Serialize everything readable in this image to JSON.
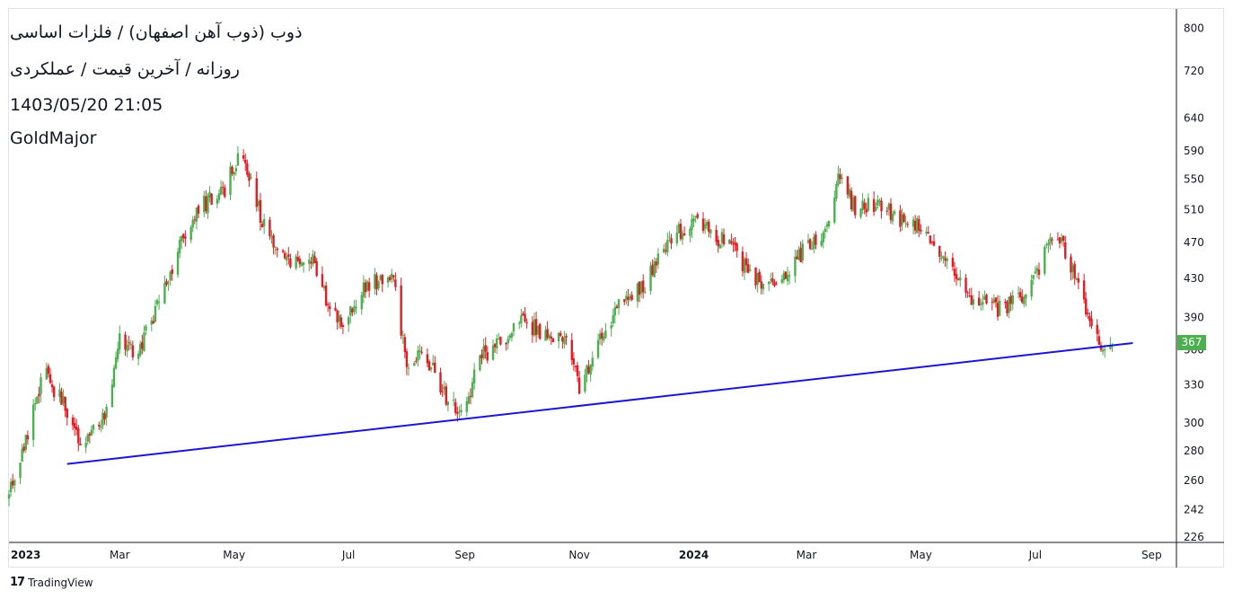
{
  "header": {
    "title": "ذوب (ذوب آهن اصفهان) / فلزات اساسی",
    "subtitle": "روزانه / آخرین قیمت / عملکردی",
    "datetime": "1403/05/20 21:05",
    "author": "GoldMajor"
  },
  "branding": {
    "label": "TradingView",
    "logo_glyph": "17"
  },
  "colors": {
    "up": "#4caf50",
    "down": "#e31b23",
    "trendline": "#1a16d4",
    "grid": "#e0e3eb"
  },
  "chart_data": {
    "type": "candlestick",
    "title": "ذوب (ذوب آهن اصفهان) / فلزات اساسی",
    "interval": "daily",
    "scale": "log",
    "ylim": [
      226,
      810
    ],
    "y_ticks": [
      800,
      720,
      640,
      590,
      550,
      510,
      470,
      430,
      390,
      360,
      330,
      300,
      280,
      260,
      242,
      226
    ],
    "x_range": [
      "2023-01-01",
      "2024-09-08"
    ],
    "x_ticks": [
      {
        "label": "2023",
        "date": "2023-01-01",
        "bold": true
      },
      {
        "label": "Mar",
        "date": "2023-03-01"
      },
      {
        "label": "May",
        "date": "2023-05-01"
      },
      {
        "label": "Jul",
        "date": "2023-07-01"
      },
      {
        "label": "Sep",
        "date": "2023-09-01"
      },
      {
        "label": "Nov",
        "date": "2023-11-01"
      },
      {
        "label": "2024",
        "date": "2024-01-01",
        "bold": true
      },
      {
        "label": "Mar",
        "date": "2024-03-01"
      },
      {
        "label": "May",
        "date": "2024-05-01"
      },
      {
        "label": "Jul",
        "date": "2024-07-01"
      },
      {
        "label": "Sep",
        "date": "2024-09-01"
      }
    ],
    "price_path": [
      [
        "2023-01-01",
        250
      ],
      [
        "2023-01-10",
        290
      ],
      [
        "2023-01-20",
        340
      ],
      [
        "2023-02-01",
        310
      ],
      [
        "2023-02-10",
        282
      ],
      [
        "2023-02-22",
        310
      ],
      [
        "2023-03-01",
        370
      ],
      [
        "2023-03-10",
        355
      ],
      [
        "2023-03-20",
        395
      ],
      [
        "2023-04-01",
        460
      ],
      [
        "2023-04-12",
        515
      ],
      [
        "2023-04-25",
        530
      ],
      [
        "2023-05-05",
        600
      ],
      [
        "2023-05-12",
        525
      ],
      [
        "2023-05-20",
        470
      ],
      [
        "2023-06-01",
        448
      ],
      [
        "2023-06-12",
        455
      ],
      [
        "2023-06-20",
        400
      ],
      [
        "2023-06-30",
        385
      ],
      [
        "2023-07-10",
        425
      ],
      [
        "2023-07-25",
        430
      ],
      [
        "2023-08-01",
        345
      ],
      [
        "2023-08-10",
        360
      ],
      [
        "2023-08-20",
        325
      ],
      [
        "2023-08-30",
        306
      ],
      [
        "2023-09-10",
        355
      ],
      [
        "2023-09-20",
        365
      ],
      [
        "2023-10-01",
        388
      ],
      [
        "2023-10-12",
        375
      ],
      [
        "2023-10-25",
        372
      ],
      [
        "2023-11-01",
        325
      ],
      [
        "2023-11-10",
        365
      ],
      [
        "2023-11-22",
        402
      ],
      [
        "2023-12-05",
        420
      ],
      [
        "2023-12-20",
        478
      ],
      [
        "2024-01-01",
        492
      ],
      [
        "2024-01-10",
        482
      ],
      [
        "2024-01-20",
        465
      ],
      [
        "2024-02-01",
        435
      ],
      [
        "2024-02-10",
        422
      ],
      [
        "2024-02-20",
        440
      ],
      [
        "2024-03-01",
        465
      ],
      [
        "2024-03-10",
        480
      ],
      [
        "2024-03-18",
        548
      ],
      [
        "2024-03-28",
        510
      ],
      [
        "2024-04-10",
        518
      ],
      [
        "2024-04-20",
        495
      ],
      [
        "2024-05-01",
        488
      ],
      [
        "2024-05-10",
        465
      ],
      [
        "2024-05-20",
        425
      ],
      [
        "2024-06-01",
        405
      ],
      [
        "2024-06-12",
        398
      ],
      [
        "2024-06-25",
        408
      ],
      [
        "2024-07-05",
        452
      ],
      [
        "2024-07-12",
        488
      ],
      [
        "2024-07-20",
        440
      ],
      [
        "2024-07-28",
        400
      ],
      [
        "2024-08-04",
        362
      ],
      [
        "2024-08-11",
        367
      ]
    ],
    "trendline": {
      "from": [
        "2023-02-01",
        271
      ],
      "to": [
        "2024-08-22",
        366
      ]
    },
    "last_price": {
      "value": 367,
      "label": "367"
    }
  }
}
